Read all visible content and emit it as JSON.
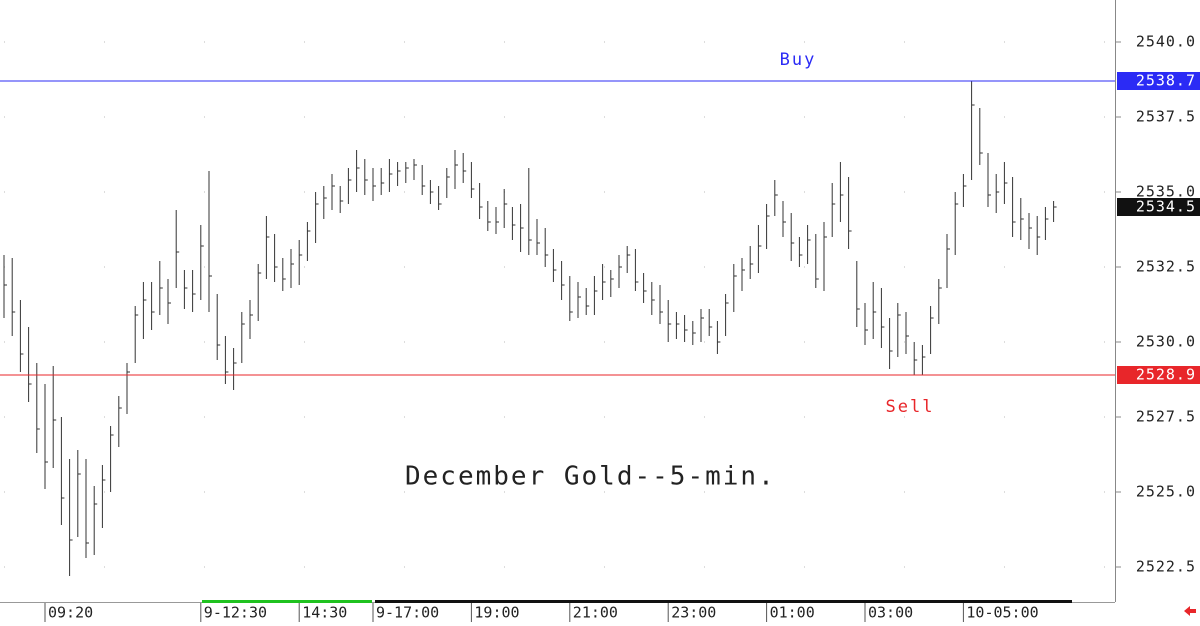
{
  "chart_data": {
    "type": "ohlc",
    "title": "December Gold--5-min.",
    "color": "#333333",
    "categories": [
      null,
      null,
      null,
      null,
      null,
      "09:20",
      null,
      null,
      null,
      null,
      null,
      null,
      null,
      null,
      null,
      null,
      null,
      null,
      null,
      null,
      null,
      null,
      null,
      null,
      "9-12:30",
      null,
      null,
      null,
      null,
      null,
      null,
      null,
      null,
      null,
      null,
      null,
      "14:30",
      null,
      null,
      null,
      null,
      null,
      null,
      null,
      null,
      "9-17:00",
      null,
      null,
      null,
      null,
      null,
      null,
      null,
      null,
      null,
      null,
      null,
      "19:00",
      null,
      null,
      null,
      null,
      null,
      null,
      null,
      null,
      null,
      null,
      null,
      "21:00",
      null,
      null,
      null,
      null,
      null,
      null,
      null,
      null,
      null,
      null,
      null,
      "23:00",
      null,
      null,
      null,
      null,
      null,
      null,
      null,
      null,
      null,
      null,
      null,
      "01:00",
      null,
      null,
      null,
      null,
      null,
      null,
      null,
      null,
      null,
      null,
      null,
      "03:00",
      null,
      null,
      null,
      null,
      null,
      null,
      null,
      null,
      null,
      null,
      null,
      "10-05:00",
      null,
      null,
      null,
      null,
      null,
      null,
      null,
      null,
      null,
      null,
      null
    ],
    "high": [
      2532.9,
      2532.8,
      2531.4,
      2530.5,
      2529.3,
      2528.6,
      2529.2,
      2527.5,
      2526.1,
      2526.4,
      2526.1,
      2525.2,
      2525.9,
      2527.2,
      2528.2,
      2529.3,
      2531.2,
      2532.0,
      2532.0,
      2532.7,
      2532.1,
      2534.4,
      2532.4,
      2532.4,
      2533.9,
      2535.7,
      2531.6,
      2530.2,
      2529.8,
      2531.0,
      2531.4,
      2532.6,
      2534.2,
      2533.6,
      2532.8,
      2533.1,
      2533.4,
      2534.0,
      2535.0,
      2535.2,
      2535.6,
      2535.2,
      2535.8,
      2536.4,
      2536.1,
      2535.8,
      2535.8,
      2536.1,
      2536.0,
      2536.0,
      2536.1,
      2535.9,
      2535.4,
      2535.2,
      2535.8,
      2536.4,
      2536.3,
      2536.0,
      2535.3,
      2534.7,
      2534.5,
      2535.1,
      2534.5,
      2534.6,
      2535.8,
      2534.1,
      2533.8,
      2533.1,
      2532.7,
      2532.2,
      2532.0,
      2531.8,
      2532.2,
      2532.6,
      2532.4,
      2532.9,
      2533.2,
      2533.1,
      2532.3,
      2532.0,
      2531.9,
      2531.4,
      2531.0,
      2530.9,
      2530.7,
      2531.1,
      2531.1,
      2530.7,
      2531.6,
      2532.6,
      2532.8,
      2533.2,
      2533.9,
      2534.6,
      2535.4,
      2534.7,
      2534.3,
      2533.5,
      2533.9,
      2533.6,
      2534.0,
      2535.3,
      2536.0,
      2535.5,
      2532.7,
      2531.3,
      2532.0,
      2531.8,
      2530.8,
      2531.3,
      2531.0,
      2530.0,
      2529.9,
      2531.2,
      2532.1,
      2533.6,
      2535.0,
      2535.6,
      2538.7,
      2537.8,
      2536.3,
      2535.6,
      2536.0,
      2535.5,
      2534.8,
      2534.3,
      2534.2,
      2534.5,
      2534.7
    ],
    "low": [
      2530.8,
      2530.2,
      2529.0,
      2528.0,
      2526.3,
      2525.1,
      2525.8,
      2523.9,
      2522.2,
      2523.5,
      2522.8,
      2522.9,
      2523.8,
      2525.0,
      2526.5,
      2527.6,
      2529.3,
      2530.1,
      2530.4,
      2530.9,
      2530.6,
      2531.8,
      2531.1,
      2531.0,
      2531.4,
      2531.0,
      2529.4,
      2528.6,
      2528.4,
      2529.3,
      2530.1,
      2530.7,
      2532.1,
      2532.0,
      2531.7,
      2531.8,
      2531.9,
      2532.7,
      2533.3,
      2534.1,
      2534.4,
      2534.3,
      2534.6,
      2535.0,
      2534.9,
      2534.7,
      2534.9,
      2535.0,
      2535.2,
      2535.3,
      2535.4,
      2534.9,
      2534.6,
      2534.4,
      2534.8,
      2535.1,
      2535.3,
      2534.8,
      2534.1,
      2533.7,
      2533.6,
      2533.8,
      2533.4,
      2533.0,
      2532.9,
      2532.9,
      2532.5,
      2532.0,
      2531.4,
      2530.7,
      2530.8,
      2530.9,
      2530.9,
      2531.4,
      2531.5,
      2531.8,
      2532.3,
      2531.7,
      2531.3,
      2530.9,
      2530.6,
      2530.0,
      2530.1,
      2530.0,
      2529.9,
      2530.0,
      2530.2,
      2529.6,
      2530.2,
      2531.0,
      2531.7,
      2532.1,
      2532.3,
      2533.1,
      2534.2,
      2533.5,
      2532.7,
      2532.5,
      2532.6,
      2531.8,
      2531.7,
      2533.5,
      2534.0,
      2533.1,
      2530.5,
      2529.9,
      2530.1,
      2529.8,
      2529.1,
      2529.5,
      2529.6,
      2528.9,
      2528.9,
      2529.6,
      2530.6,
      2531.8,
      2532.9,
      2534.5,
      2535.4,
      2535.9,
      2534.5,
      2534.3,
      2534.6,
      2533.5,
      2533.4,
      2533.1,
      2532.9,
      2533.4,
      2534.0
    ],
    "close": [
      2531.9,
      2531.0,
      2529.6,
      2528.6,
      2527.1,
      2526.0,
      2527.4,
      2524.8,
      2523.4,
      2525.6,
      2523.3,
      2524.6,
      2525.4,
      2526.9,
      2527.8,
      2529.0,
      2530.9,
      2531.4,
      2531.0,
      2531.8,
      2531.3,
      2533.0,
      2531.8,
      2531.6,
      2533.2,
      2532.2,
      2529.9,
      2529.0,
      2529.3,
      2530.6,
      2530.9,
      2532.3,
      2533.5,
      2532.5,
      2532.1,
      2532.6,
      2532.9,
      2533.7,
      2534.6,
      2534.8,
      2535.2,
      2534.7,
      2535.4,
      2535.8,
      2535.4,
      2535.2,
      2535.3,
      2535.6,
      2535.7,
      2535.8,
      2535.9,
      2535.2,
      2535.0,
      2534.6,
      2535.5,
      2535.9,
      2535.7,
      2535.1,
      2534.5,
      2534.0,
      2534.0,
      2534.6,
      2533.9,
      2533.8,
      2533.4,
      2533.3,
      2532.9,
      2532.4,
      2531.9,
      2531.0,
      2531.5,
      2531.2,
      2531.7,
      2532.0,
      2532.1,
      2532.5,
      2532.9,
      2532.0,
      2531.7,
      2531.4,
      2531.0,
      2530.6,
      2530.6,
      2530.4,
      2530.3,
      2530.8,
      2530.5,
      2530.0,
      2531.3,
      2532.2,
      2532.4,
      2532.6,
      2533.2,
      2534.2,
      2534.9,
      2534.0,
      2533.3,
      2532.9,
      2533.4,
      2532.1,
      2533.5,
      2534.6,
      2534.9,
      2533.7,
      2531.1,
      2530.4,
      2531.0,
      2530.5,
      2529.7,
      2530.9,
      2530.2,
      2529.4,
      2529.5,
      2530.8,
      2531.8,
      2533.1,
      2534.6,
      2535.2,
      2537.9,
      2536.3,
      2534.9,
      2535.0,
      2535.3,
      2534.0,
      2534.1,
      2533.8,
      2533.5,
      2534.1,
      2534.5
    ],
    "levels": [
      {
        "name": "Buy",
        "value": 2538.7,
        "color": "#2b2bf5"
      },
      {
        "name": "Sell",
        "value": 2528.9,
        "color": "#e8262a"
      }
    ],
    "ylim": [
      2521.4,
      2541.4
    ],
    "yticks": [
      2522.5,
      {
        "value": 2525,
        "label": "2525.0"
      },
      2527.5,
      {
        "value": 2530,
        "label": "2530.0"
      },
      2532.5,
      {
        "value": 2535,
        "label": "2535.0"
      },
      2537.5,
      {
        "value": 2540,
        "label": "2540.0"
      }
    ],
    "grid": true
  }
}
